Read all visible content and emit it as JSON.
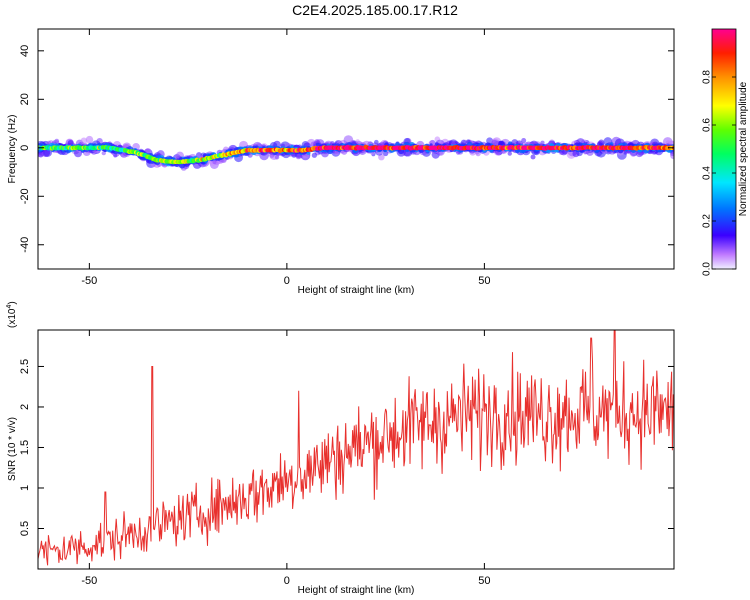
{
  "title": "C2E4.2025.185.00.17.R12",
  "chart_data": [
    {
      "type": "heatmap",
      "xlabel": "Height of straight line (km)",
      "ylabel": "Frequency (Hz)",
      "xlim": [
        -63,
        98
      ],
      "ylim": [
        -50,
        49
      ],
      "xticks": [
        -50,
        0,
        50
      ],
      "yticks": [
        -40,
        -20,
        0,
        20,
        40
      ],
      "colorbar": {
        "label": "Normalized spectral amplitude",
        "range": [
          0,
          1
        ],
        "ticks": [
          0.0,
          0.2,
          0.4,
          0.6,
          0.8
        ]
      },
      "ridge": {
        "x": [
          -63,
          -55,
          -45,
          -38,
          -33,
          -28,
          -22,
          -16,
          -10,
          -5,
          0,
          5,
          8,
          20,
          40,
          60,
          80,
          97
        ],
        "y": [
          0,
          0,
          0,
          -2,
          -5,
          -6,
          -5,
          -3,
          -1,
          -1,
          -1,
          -1,
          0,
          0,
          0,
          0,
          0,
          0
        ],
        "level": [
          0.45,
          0.55,
          0.5,
          0.55,
          0.6,
          0.6,
          0.6,
          0.7,
          0.8,
          0.85,
          0.8,
          0.8,
          0.95,
          0.97,
          0.97,
          0.95,
          0.95,
          0.85
        ]
      }
    },
    {
      "type": "line",
      "xlabel": "Height of straight line (km)",
      "ylabel": "SNR (10 * v/v)",
      "y_multiplier": "(x10",
      "y_multiplier_exp": "4",
      "y_multiplier_close": ")",
      "xlim": [
        -63,
        98
      ],
      "ylim": [
        0,
        2.95
      ],
      "xticks": [
        -50,
        0,
        50
      ],
      "yticks": [
        0.5,
        1.0,
        1.5,
        2.0,
        2.5
      ],
      "color": "#e8302d",
      "trend": {
        "x": [
          -63,
          -55,
          -45,
          -35,
          -25,
          -15,
          -5,
          5,
          15,
          25,
          35,
          45,
          55,
          65,
          75,
          85,
          97
        ],
        "y": [
          0.2,
          0.25,
          0.35,
          0.5,
          0.65,
          0.8,
          1.0,
          1.2,
          1.45,
          1.65,
          1.8,
          1.9,
          1.95,
          1.9,
          1.95,
          1.95,
          1.95
        ]
      },
      "peaks": {
        "x": [
          -34,
          3,
          -46,
          83,
          77
        ],
        "y": [
          2.5,
          2.2,
          0.95,
          2.95,
          2.85
        ]
      }
    }
  ]
}
